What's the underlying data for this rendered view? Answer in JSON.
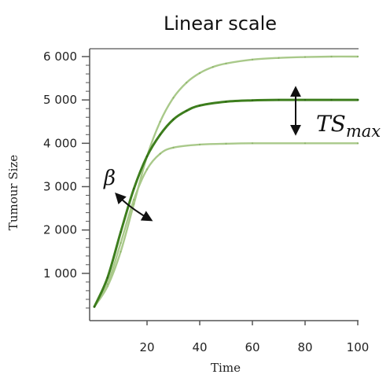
{
  "chart_data": {
    "type": "line",
    "title": "Linear scale",
    "xlabel": "Time",
    "ylabel": "Tumour Size",
    "xlim": [
      0,
      100
    ],
    "ylim": [
      0,
      6000
    ],
    "x_ticks": [
      20,
      40,
      60,
      80,
      100
    ],
    "x_tick_labels": [
      "20",
      "40",
      "60",
      "80",
      "100"
    ],
    "y_ticks": [
      1000,
      2000,
      3000,
      4000,
      5000,
      6000
    ],
    "y_tick_labels": [
      "1 000",
      "2 000",
      "3 000",
      "4 000",
      "5 000",
      "6 000"
    ],
    "grid": false,
    "colors": {
      "main": "#3d7e1d",
      "faint": "#a9c98a",
      "axis": "#555555",
      "arrow": "#111111"
    },
    "series": [
      {
        "style": "main",
        "x": [
          0,
          5,
          10,
          15,
          20,
          25,
          30,
          35,
          40,
          50,
          60,
          70,
          80,
          90,
          100
        ],
        "y": [
          230,
          900,
          1950,
          2950,
          3700,
          4200,
          4550,
          4750,
          4870,
          4960,
          4990,
          5000,
          5000,
          5000,
          5000
        ]
      },
      {
        "style": "faint",
        "x": [
          0,
          5,
          10,
          15,
          20,
          25,
          30,
          35,
          40,
          45,
          50,
          60,
          70,
          80,
          90,
          100
        ],
        "y": [
          230,
          700,
          1500,
          2600,
          3700,
          4500,
          5050,
          5400,
          5620,
          5760,
          5840,
          5930,
          5970,
          5990,
          6000,
          6000
        ]
      },
      {
        "style": "faint",
        "x": [
          0,
          5,
          10,
          15,
          20,
          25,
          30,
          40,
          50,
          60,
          80,
          100
        ],
        "y": [
          230,
          750,
          1700,
          2700,
          3400,
          3760,
          3900,
          3970,
          3990,
          4000,
          4000,
          4000
        ]
      }
    ],
    "annotations": {
      "beta": "β",
      "ts_base": "TS",
      "ts_sub": "max"
    }
  }
}
